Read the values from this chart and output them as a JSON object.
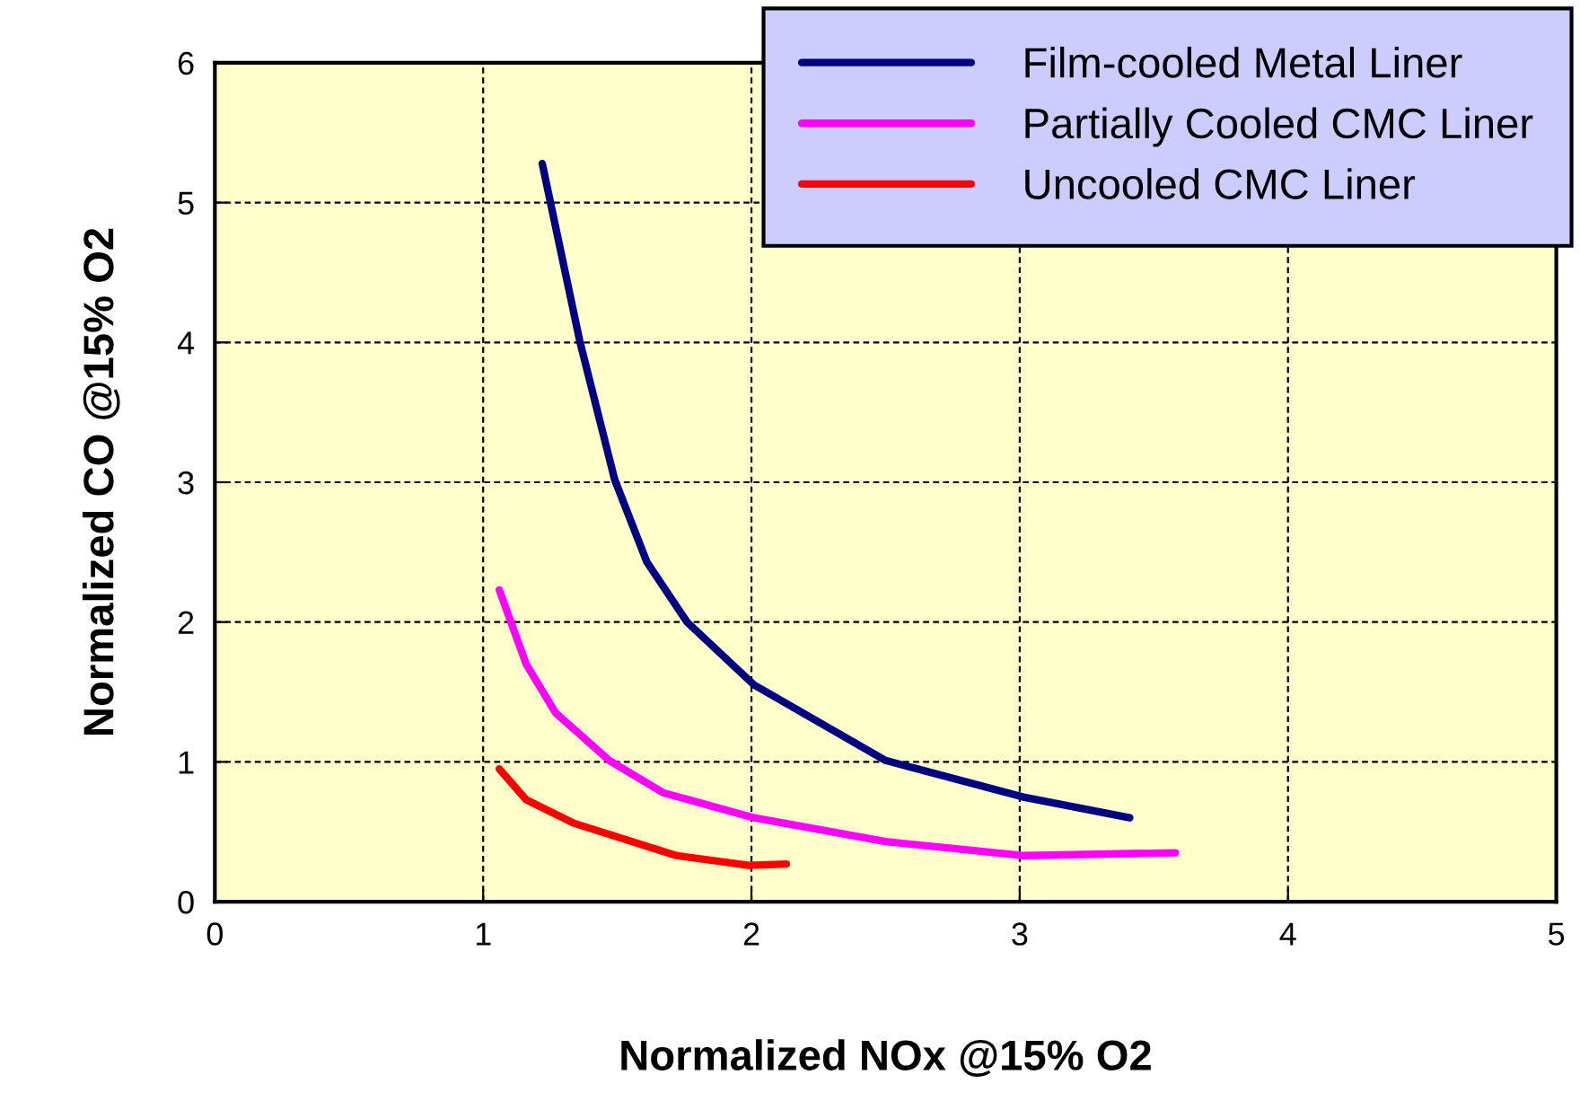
{
  "chart_data": {
    "type": "line",
    "xlabel": "Normalized NOx @15% O2",
    "ylabel": "Normalized CO @15% O2",
    "xlim": [
      0,
      5
    ],
    "xticks": [
      0,
      1,
      2,
      3,
      4,
      5
    ],
    "ylim": [
      0,
      6
    ],
    "yticks": [
      0,
      1,
      2,
      3,
      4,
      5,
      6
    ],
    "grid": true,
    "legend": "top right",
    "marker": "none",
    "line_style": "solid",
    "series": [
      {
        "name": "Film-cooled Metal Liner",
        "color": "#000080",
        "x": [
          1.22,
          1.36,
          1.49,
          1.61,
          1.76,
          2.01,
          2.5,
          3.01,
          3.41
        ],
        "values": [
          5.28,
          4.01,
          3.02,
          2.43,
          2.0,
          1.55,
          1.01,
          0.75,
          0.6
        ]
      },
      {
        "name": "Partially Cooled CMC Liner",
        "color": "#ff00ff",
        "x": [
          1.06,
          1.16,
          1.27,
          1.47,
          1.67,
          2.01,
          2.5,
          3.01,
          3.58
        ],
        "values": [
          2.23,
          1.7,
          1.35,
          1.01,
          0.78,
          0.6,
          0.43,
          0.33,
          0.35
        ]
      },
      {
        "name": "Uncooled CMC Liner",
        "color": "#ff0000",
        "x": [
          1.06,
          1.16,
          1.34,
          1.72,
          1.99,
          2.13
        ],
        "values": [
          0.95,
          0.73,
          0.56,
          0.33,
          0.26,
          0.27
        ]
      }
    ]
  }
}
